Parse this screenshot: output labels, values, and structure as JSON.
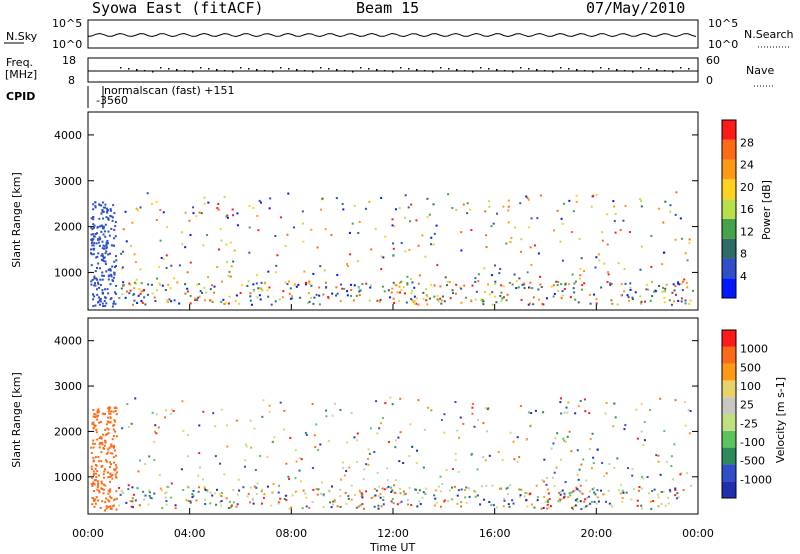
{
  "header": {
    "radar": "Syowa East (fitACF)",
    "beam": "Beam 15",
    "date": "07/May/2010"
  },
  "panel_labels": {
    "nsky": "N.Sky",
    "nsearch": "N.Search",
    "freq_line1": "Freq.",
    "freq_line2": "[MHz]",
    "nave": "Nave",
    "cpid": "CPID",
    "cpid_text_1": "normalscan (fast) +151",
    "cpid_text_2": "-3560",
    "ylabel": "Slant Range [km]",
    "xlabel": "Time UT"
  },
  "colors": {
    "power": [
      "#0018ff",
      "#2f4fc8",
      "#2d6d66",
      "#46a349",
      "#b8e04a",
      "#ffd21f",
      "#ff9a17",
      "#ff6a17",
      "#ff1a1a"
    ],
    "velocity": [
      "#ff1a1a",
      "#ff6a17",
      "#ff9a17",
      "#e8d36a",
      "#c8c8c0",
      "#c0e080",
      "#5cc45c",
      "#2d8a5a",
      "#2f4fc8",
      "#1f2fb0"
    ]
  },
  "chart_data": [
    {
      "type": "line",
      "name": "N.Sky",
      "ylabel": "N.Sky",
      "ylim_labels": [
        "10^0",
        "10^5"
      ],
      "right_axis_labels": [
        "10^0",
        "10^5"
      ],
      "right_label": "N.Search"
    },
    {
      "type": "scatter",
      "name": "Freq",
      "ylabel": "Freq. [MHz]",
      "yticks": [
        8,
        18
      ],
      "right_axis_ticks": [
        0,
        60
      ],
      "right_label": "Nave"
    },
    {
      "type": "heatmap",
      "name": "Power",
      "ylabel": "Slant Range [km]",
      "ylim": [
        180,
        4500
      ],
      "yticks": [
        1000,
        2000,
        3000,
        4000
      ],
      "xlim": [
        "00:00",
        "24:00"
      ],
      "xticks": [
        "00:00",
        "04:00",
        "08:00",
        "12:00",
        "16:00",
        "20:00",
        "00:00"
      ],
      "colorbar_label": "Power [dB]",
      "colorbar_ticks": [
        4,
        8,
        12,
        16,
        20,
        24,
        28
      ],
      "colorbar_range": [
        0,
        32
      ]
    },
    {
      "type": "heatmap",
      "name": "Velocity",
      "ylabel": "Slant Range [km]",
      "ylim": [
        180,
        4500
      ],
      "yticks": [
        1000,
        2000,
        3000,
        4000
      ],
      "xlim": [
        "00:00",
        "24:00"
      ],
      "xticks": [
        "00:00",
        "04:00",
        "08:00",
        "12:00",
        "16:00",
        "20:00",
        "00:00"
      ],
      "xlabel": "Time UT",
      "colorbar_label": "Velocity [m s^-1]",
      "colorbar_ticks": [
        1000,
        500,
        100,
        25,
        -25,
        -100,
        -500,
        -1000
      ]
    }
  ]
}
